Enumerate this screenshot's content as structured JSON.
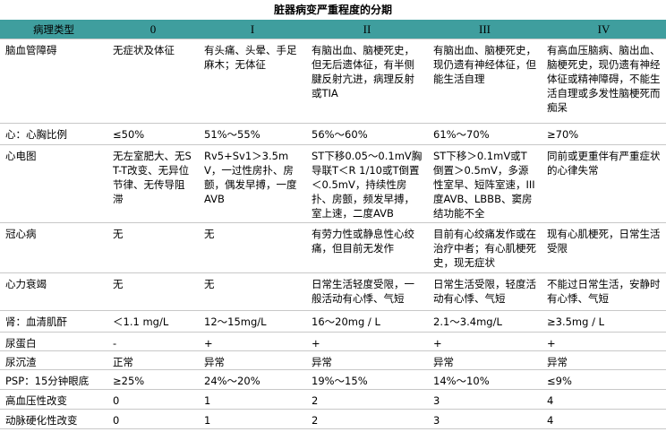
{
  "title": "脏器病变严重程度的分期",
  "table": {
    "header": [
      "病理类型",
      "0",
      "I",
      "II",
      "III",
      "IV"
    ],
    "rows": [
      [
        "脑血管障碍",
        "无症状及体征",
        "有头痛、头晕、手足麻木；无体征",
        "有脑出血、脑梗死史，但无后遗体征，有半侧腱反射亢进，病理反射或TIA",
        "有脑出血、脑梗死史，现仍遗有神经体征，但能生活自理",
        "有高血压脑病、脑出血、脑梗死史，现仍遗有神经体征或精神障碍，不能生活自理或多发性脑梗死而痴呆"
      ],
      [
        "心：心胸比例",
        "≤50%",
        "51%～55%",
        "56%～60%",
        "61%～70%",
        "≥70%"
      ],
      [
        "心电图",
        "无左室肥大、无ST-T改变、无异位节律、无传导阻滞",
        "Rv5+Sv1＞3.5mV，一过性房扑、房颤，偶发早搏，一度AVB",
        "ST下移0.05～0.1mV胸导联T＜R 1/10或T倒置＜0.5mV，持续性房扑、房颤，频发早搏，室上速，二度AVB",
        "ST下移＞0.1mV或T倒置＞0.5mV，多源性室早、短阵室速，III度AVB、LBBB、窦房结功能不全",
        "同前或更重伴有严重症状的心律失常"
      ],
      [
        "冠心病",
        "无",
        "无",
        "有劳力性或静息性心绞痛，但目前无发作",
        "目前有心绞痛发作或在治疗中者；有心肌梗死史，现无症状",
        "现有心肌梗死，日常生活受限"
      ],
      [
        "心力衰竭",
        "无",
        "无",
        "日常生活轻度受限，一般活动有心悸、气短",
        "日常生活受限，轻度活动有心悸、气短",
        "不能过日常生活，安静时有心悸、气短"
      ],
      [
        "肾：血清肌酐",
        "＜1.1 mg/L",
        "12～15mg/L",
        "16～20mg / L",
        "2.1～3.4mg/L",
        "≥3.5mg / L"
      ],
      [
        "尿蛋白",
        "-",
        "+",
        "+",
        "+",
        "+"
      ],
      [
        "尿沉渣",
        "正常",
        "异常",
        "异常",
        "异常",
        "异常"
      ],
      [
        "PSP：15分钟眼底",
        "≥25%",
        "24%～20%",
        "19%～15%",
        "14%～10%",
        "≤9%"
      ],
      [
        "高血压性改变",
        "0",
        "1",
        "2",
        "3",
        "4"
      ],
      [
        "动脉硬化性改变",
        "0",
        "1",
        "2",
        "3",
        "4"
      ]
    ]
  }
}
